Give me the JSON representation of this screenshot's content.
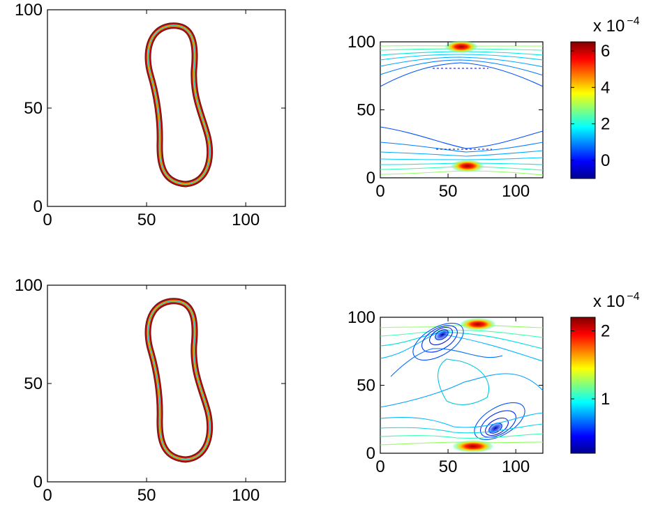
{
  "chart_data": [
    {
      "type": "contour",
      "panel": "top-left",
      "title": "",
      "xlabel": "",
      "ylabel": "",
      "xlim": [
        0,
        120
      ],
      "ylim": [
        0,
        100
      ],
      "x_ticks": [
        0,
        50,
        100
      ],
      "y_ticks": [
        0,
        50,
        100
      ],
      "x_tick_labels": [
        "0",
        "50",
        "100"
      ],
      "y_tick_labels": [
        "0",
        "50",
        "100"
      ],
      "grid": false,
      "shape": "dumbbell-shaped closed band",
      "shape_extent": {
        "x": [
          51,
          83
        ],
        "y": [
          11,
          93
        ]
      },
      "band_colors": [
        "#7f1515",
        "#e02020",
        "#ffcc00",
        "#00ccc0"
      ]
    },
    {
      "type": "contour",
      "panel": "top-right",
      "title": "",
      "xlabel": "",
      "ylabel": "",
      "xlim": [
        0,
        120
      ],
      "ylim": [
        0,
        100
      ],
      "x_ticks": [
        0,
        50,
        100
      ],
      "y_ticks": [
        0,
        50,
        100
      ],
      "x_tick_labels": [
        "0",
        "50",
        "100"
      ],
      "y_tick_labels": [
        "0",
        "50",
        "100"
      ],
      "grid": false,
      "hotspots": [
        {
          "x": 63,
          "y": 93,
          "level": "max"
        },
        {
          "x": 70,
          "y": 7,
          "level": "max"
        }
      ],
      "colorbar": {
        "range": [
          -0.0001,
          0.00065
        ],
        "ticks": [
          0,
          2,
          4,
          6
        ],
        "tick_labels": [
          "0",
          "2",
          "4",
          "6"
        ],
        "scale_base": "x 10",
        "scale_exponent": "−4"
      }
    },
    {
      "type": "contour",
      "panel": "bottom-left",
      "title": "",
      "xlabel": "",
      "ylabel": "",
      "xlim": [
        0,
        120
      ],
      "ylim": [
        0,
        100
      ],
      "x_ticks": [
        0,
        50,
        100
      ],
      "y_ticks": [
        0,
        50,
        100
      ],
      "x_tick_labels": [
        "0",
        "50",
        "100"
      ],
      "y_tick_labels": [
        "0",
        "50",
        "100"
      ],
      "grid": false,
      "shape": "dumbbell-shaped closed band",
      "shape_extent": {
        "x": [
          51,
          83
        ],
        "y": [
          11,
          93
        ]
      },
      "band_colors": [
        "#7f1515",
        "#e02020",
        "#ffcc00",
        "#00ccc0"
      ]
    },
    {
      "type": "contour",
      "panel": "bottom-right",
      "title": "",
      "xlabel": "",
      "ylabel": "",
      "xlim": [
        0,
        120
      ],
      "ylim": [
        0,
        100
      ],
      "x_ticks": [
        0,
        50,
        100
      ],
      "y_ticks": [
        0,
        50,
        100
      ],
      "x_tick_labels": [
        "0",
        "50",
        "100"
      ],
      "y_tick_labels": [
        "0",
        "50",
        "100"
      ],
      "grid": false,
      "hotspots": [
        {
          "x": 68,
          "y": 94,
          "level": "max"
        },
        {
          "x": 52,
          "y": 87,
          "level": "min"
        },
        {
          "x": 70,
          "y": 6,
          "level": "max"
        },
        {
          "x": 85,
          "y": 13,
          "level": "min"
        }
      ],
      "colorbar": {
        "range": [
          2e-05,
          0.00022
        ],
        "ticks": [
          1,
          2
        ],
        "tick_labels": [
          "1",
          "2"
        ],
        "scale_base": "x 10",
        "scale_exponent": "−4"
      }
    }
  ]
}
